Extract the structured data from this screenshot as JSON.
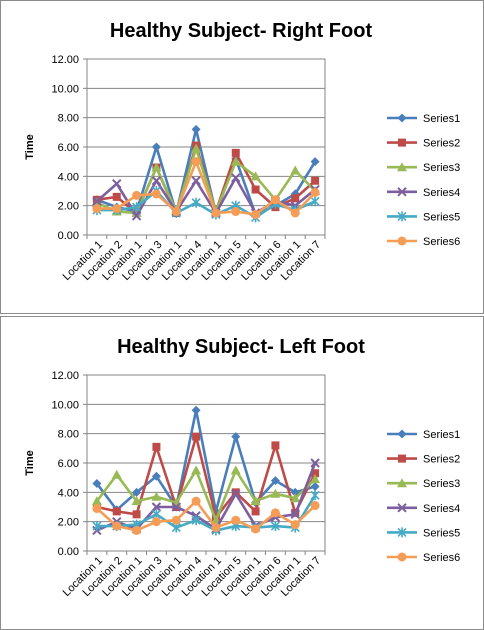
{
  "chart_data": [
    {
      "type": "line",
      "title": "Healthy Subject- Right Foot",
      "ylabel": "Time",
      "xlabel": "",
      "ylim": [
        0,
        12
      ],
      "ytick_labels": [
        "0.00",
        "2.00",
        "4.00",
        "6.00",
        "8.00",
        "10.00",
        "12.00"
      ],
      "categories": [
        "Location 1",
        "Location 2",
        "Location 1",
        "Location 3",
        "Location 1",
        "Location 4",
        "Location 1",
        "Location 5",
        "Location 1",
        "Location 6",
        "Location 1",
        "Location 7"
      ],
      "legend_position": "right",
      "grid": true,
      "series": [
        {
          "name": "Series1",
          "color": "#4a7ebb",
          "marker": "diamond",
          "values": [
            2.4,
            1.9,
            1.6,
            6.0,
            1.5,
            7.2,
            1.5,
            5.2,
            1.4,
            2.0,
            2.8,
            5.0
          ]
        },
        {
          "name": "Series2",
          "color": "#be4b48",
          "marker": "square",
          "values": [
            2.4,
            2.6,
            1.5,
            4.6,
            1.5,
            6.1,
            1.6,
            5.6,
            3.1,
            1.9,
            2.5,
            3.7
          ]
        },
        {
          "name": "Series3",
          "color": "#98b954",
          "marker": "triangle",
          "values": [
            2.2,
            1.6,
            1.5,
            4.6,
            1.6,
            5.9,
            1.6,
            5.0,
            4.0,
            2.4,
            4.4,
            3.0
          ]
        },
        {
          "name": "Series4",
          "color": "#7d5fa0",
          "marker": "x",
          "values": [
            2.3,
            3.5,
            1.3,
            3.7,
            1.6,
            3.7,
            1.5,
            3.9,
            1.5,
            2.3,
            2.0,
            3.1
          ]
        },
        {
          "name": "Series5",
          "color": "#46aac5",
          "marker": "star",
          "values": [
            1.7,
            1.7,
            1.9,
            3.0,
            1.5,
            2.2,
            1.4,
            2.0,
            1.2,
            2.1,
            1.7,
            2.3
          ]
        },
        {
          "name": "Series6",
          "color": "#f59d56",
          "marker": "circle",
          "values": [
            1.8,
            1.8,
            2.7,
            2.8,
            1.6,
            5.0,
            1.5,
            1.6,
            1.4,
            2.4,
            1.5,
            2.9
          ]
        }
      ]
    },
    {
      "type": "line",
      "title": "Healthy Subject- Left Foot",
      "ylabel": "Time",
      "xlabel": "",
      "ylim": [
        0,
        12
      ],
      "ytick_labels": [
        "0.00",
        "2.00",
        "4.00",
        "6.00",
        "8.00",
        "10.00",
        "12.00"
      ],
      "categories": [
        "Location 1",
        "Location 2",
        "Location 1",
        "Location 3",
        "Location 1",
        "Location 4",
        "Location 1",
        "Location 5",
        "Location 1",
        "Location 6",
        "Location 1",
        "Location 7"
      ],
      "legend_position": "right",
      "grid": true,
      "series": [
        {
          "name": "Series1",
          "color": "#4a7ebb",
          "marker": "diamond",
          "values": [
            4.6,
            2.8,
            4.0,
            5.1,
            3.0,
            9.6,
            2.7,
            7.8,
            3.3,
            4.8,
            4.0,
            4.4
          ]
        },
        {
          "name": "Series2",
          "color": "#be4b48",
          "marker": "square",
          "values": [
            3.0,
            2.7,
            2.5,
            7.1,
            3.0,
            7.8,
            2.3,
            4.0,
            2.7,
            7.2,
            2.6,
            5.3
          ]
        },
        {
          "name": "Series3",
          "color": "#98b954",
          "marker": "triangle",
          "values": [
            3.4,
            5.2,
            3.4,
            3.7,
            3.3,
            5.5,
            2.1,
            5.5,
            3.4,
            3.9,
            3.6,
            4.9
          ]
        },
        {
          "name": "Series4",
          "color": "#7d5fa0",
          "marker": "x",
          "values": [
            1.4,
            2.0,
            1.5,
            3.0,
            3.0,
            2.4,
            1.5,
            3.9,
            1.7,
            2.3,
            2.5,
            6.0
          ]
        },
        {
          "name": "Series5",
          "color": "#46aac5",
          "marker": "star",
          "values": [
            1.7,
            1.7,
            1.8,
            2.5,
            1.6,
            2.1,
            1.4,
            1.7,
            1.6,
            1.7,
            1.6,
            3.8
          ]
        },
        {
          "name": "Series6",
          "color": "#f59d56",
          "marker": "circle",
          "values": [
            2.9,
            1.7,
            1.4,
            2.0,
            2.1,
            3.4,
            1.6,
            2.1,
            1.5,
            2.6,
            1.8,
            3.1
          ]
        }
      ]
    }
  ]
}
